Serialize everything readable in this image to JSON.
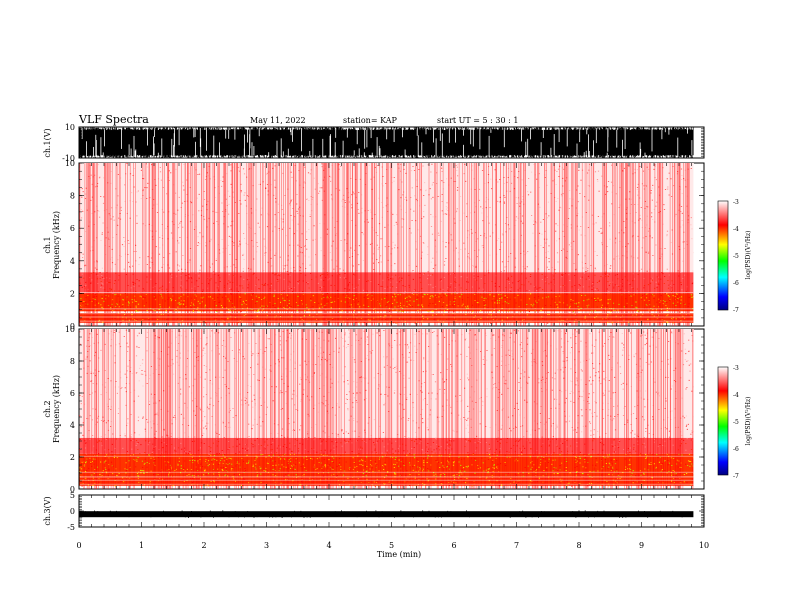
{
  "header": {
    "title": "VLF Spectra",
    "date": "May 11, 2022",
    "station": "station= KAP",
    "start": "start  UT  =   5  : 30 : 1"
  },
  "chart_data": [
    {
      "name": "ch1-waveform",
      "type": "line",
      "ylabel": "ch.1(V)",
      "ylim": [
        -10,
        10
      ],
      "yticks": [
        "10",
        "-10"
      ],
      "x_range_min": [
        0,
        9.83
      ],
      "description_of_signal": "dense oscillating waveform saturating near +/-10 V with frequent spikes"
    },
    {
      "name": "ch1-spectrogram",
      "type": "heatmap",
      "ylabel_line1": "ch.1",
      "ylabel_line2": "Frequency (kHz)",
      "ylim": [
        0,
        10
      ],
      "yticks": [
        "0",
        "2",
        "4",
        "6",
        "8",
        "10"
      ],
      "x_range_min": [
        0,
        9.83
      ],
      "colorbar": {
        "label": "log(PSD)(V²/Hz)",
        "ticks": [
          "-3",
          "-4",
          "-5",
          "-6",
          "-7"
        ],
        "range": [
          -7,
          -3
        ],
        "colors": [
          "#000080",
          "#0000ff",
          "#00ffff",
          "#00ff00",
          "#ffff00",
          "#ff0000",
          "#ffffff"
        ]
      },
      "bands_khz": [
        {
          "from": 0.2,
          "to": 0.8,
          "level": "high"
        },
        {
          "from": 0.9,
          "to": 2.0,
          "level": "very-high"
        },
        {
          "from": 2.0,
          "to": 3.3,
          "level": "medium"
        },
        {
          "from": 3.3,
          "to": 10,
          "level": "low"
        }
      ]
    },
    {
      "name": "ch2-spectrogram",
      "type": "heatmap",
      "ylabel_line1": "ch.2",
      "ylabel_line2": "Frequency (kHz)",
      "ylim": [
        0,
        10
      ],
      "yticks": [
        "0",
        "2",
        "4",
        "6",
        "8",
        "10"
      ],
      "x_range_min": [
        0,
        9.83
      ],
      "colorbar": {
        "label": "log(PSD)(V²/Hz)",
        "ticks": [
          "-3",
          "-4",
          "-5",
          "-6",
          "-7"
        ],
        "range": [
          -7,
          -3
        ]
      },
      "bands_khz": [
        {
          "from": 0.2,
          "to": 0.8,
          "level": "high"
        },
        {
          "from": 0.8,
          "to": 2.2,
          "level": "very-high"
        },
        {
          "from": 2.2,
          "to": 3.2,
          "level": "medium"
        },
        {
          "from": 3.2,
          "to": 10,
          "level": "low"
        }
      ]
    },
    {
      "name": "ch3-waveform",
      "type": "line",
      "ylabel": "ch.3(V)",
      "ylim": [
        -5,
        5
      ],
      "yticks": [
        "5",
        "0",
        "-5"
      ],
      "level_v": -1,
      "x_range_min": [
        0,
        9.83
      ]
    }
  ],
  "x_axis": {
    "label": "Time (min)",
    "ticks": [
      "0",
      "1",
      "2",
      "3",
      "4",
      "5",
      "6",
      "7",
      "8",
      "9",
      "10"
    ],
    "range": [
      0,
      10
    ]
  }
}
